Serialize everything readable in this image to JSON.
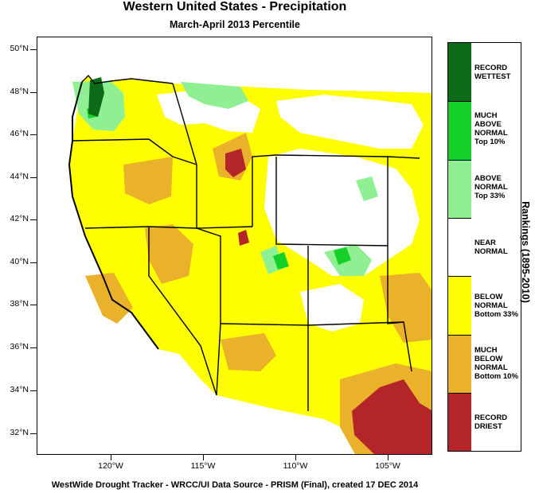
{
  "title": "Western United States - Precipitation",
  "subtitle": "March-April 2013 Percentile",
  "footer": "WestWide Drought Tracker - WRCC/UI  Data Source - PRISM (Final), created 17 DEC 2014",
  "legend_axis_title": "Rankings (1895-2010)",
  "lat_labels": [
    "50°N",
    "48°N",
    "46°N",
    "44°N",
    "42°N",
    "40°N",
    "38°N",
    "36°N",
    "34°N",
    "32°N"
  ],
  "lon_labels": [
    "120°W",
    "115°W",
    "110°W",
    "105°W"
  ],
  "legend": [
    {
      "lines": [
        "RECORD",
        "WETTEST"
      ],
      "color": "#0b6b16"
    },
    {
      "lines": [
        "MUCH",
        "ABOVE",
        "NORMAL",
        "Top 10%"
      ],
      "color": "#16d02a"
    },
    {
      "lines": [
        "ABOVE",
        "NORMAL",
        "Top 33%"
      ],
      "color": "#8ef092"
    },
    {
      "lines": [
        "NEAR",
        "NORMAL"
      ],
      "color": "#ffffff"
    },
    {
      "lines": [
        "BELOW",
        "NORMAL",
        "Bottom 33%"
      ],
      "color": "#ffff00"
    },
    {
      "lines": [
        "MUCH",
        "BELOW",
        "NORMAL",
        "Bottom 10%"
      ],
      "color": "#eab12b"
    },
    {
      "lines": [
        "RECORD",
        "DRIEST"
      ],
      "color": "#b2262a"
    }
  ]
}
